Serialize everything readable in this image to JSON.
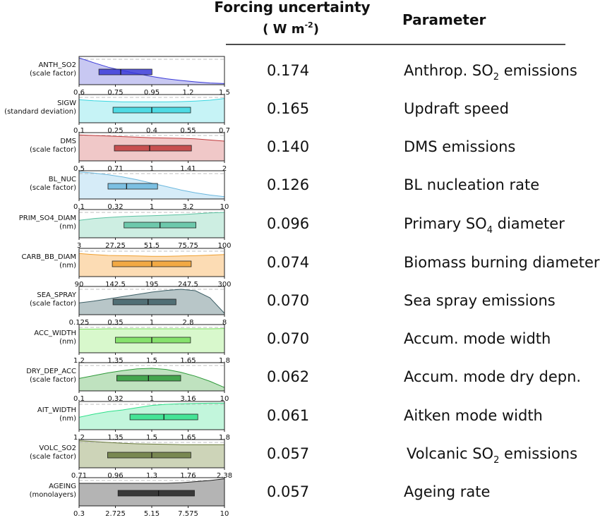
{
  "header": {
    "forcing_title": "Forcing uncertainty",
    "forcing_unit_pre": "( W m",
    "forcing_unit_sup": "-2",
    "forcing_unit_post": ")",
    "parameter_title": "Parameter"
  },
  "chart_data": {
    "type": "box-density",
    "title": "",
    "rows": [
      {
        "label": "ANTH_SO2",
        "sublabel": "(scale factor)",
        "forcing": "0.174",
        "parameter": "Anthrop. SO",
        "parameter_sub": "2",
        "parameter_post": " emissions",
        "color": "#3a3ad8",
        "fill": "#c8c8f2",
        "scale": "log",
        "ticks": [
          "0.6",
          "0.75",
          "0.95",
          "1.2",
          "1.5"
        ],
        "xmin": 0.6,
        "xmax": 1.5,
        "box": {
          "q1": 0.68,
          "median": 0.78,
          "q3": 0.95
        },
        "density": [
          0.95,
          0.78,
          0.62,
          0.5,
          0.39,
          0.29,
          0.21,
          0.15,
          0.1,
          0.06,
          0.04
        ]
      },
      {
        "label": "SIGW",
        "sublabel": "(standard deviation)",
        "forcing": "0.165",
        "parameter": "Updraft speed",
        "parameter_sub": "",
        "parameter_post": "",
        "color": "#38d6e0",
        "fill": "#c6f3f6",
        "scale": "linear",
        "ticks": [
          "0.1",
          "0.25",
          "0.4",
          "0.55",
          "0.7"
        ],
        "xmin": 0.1,
        "xmax": 0.7,
        "box": {
          "q1": 0.24,
          "median": 0.4,
          "q3": 0.56
        },
        "density": [
          0.82,
          0.78,
          0.76,
          0.74,
          0.74,
          0.74,
          0.74,
          0.75,
          0.77,
          0.8,
          0.86
        ]
      },
      {
        "label": "DMS",
        "sublabel": "(scale factor)",
        "forcing": "0.140",
        "parameter": "DMS emissions",
        "parameter_sub": "",
        "parameter_post": "",
        "color": "#c0393b",
        "fill": "#f0c8c8",
        "scale": "log",
        "ticks": [
          "0.5",
          "0.71",
          "1",
          "1.41",
          "2"
        ],
        "xmin": 0.5,
        "xmax": 2,
        "box": {
          "q1": 0.7,
          "median": 0.98,
          "q3": 1.46
        },
        "density": [
          0.92,
          0.9,
          0.88,
          0.86,
          0.84,
          0.82,
          0.81,
          0.8,
          0.78,
          0.74,
          0.7
        ]
      },
      {
        "label": "BL_NUC",
        "sublabel": "(scale factor)",
        "forcing": "0.126",
        "parameter": "BL nucleation rate",
        "parameter_sub": "",
        "parameter_post": "",
        "color": "#6cb8de",
        "fill": "#d6ecf8",
        "scale": "log",
        "ticks": [
          "0.1",
          "0.32",
          "1",
          "3.2",
          "10"
        ],
        "xmin": 0.1,
        "xmax": 10,
        "box": {
          "q1": 0.25,
          "median": 0.45,
          "q3": 1.2
        },
        "density": [
          0.96,
          0.92,
          0.86,
          0.78,
          0.68,
          0.56,
          0.44,
          0.32,
          0.22,
          0.14,
          0.08
        ]
      },
      {
        "label": "PRIM_SO4_DIAM",
        "sublabel": "(nm)",
        "forcing": "0.096",
        "parameter": "Primary SO",
        "parameter_sub": "4",
        "parameter_post": " diameter",
        "color": "#5cc2a2",
        "fill": "#cdeee2",
        "scale": "linear",
        "ticks": [
          "3",
          "27.25",
          "51.5",
          "75.75",
          "100"
        ],
        "xmin": 3,
        "xmax": 100,
        "box": {
          "q1": 33,
          "median": 57,
          "q3": 81
        },
        "density": [
          0.62,
          0.68,
          0.72,
          0.75,
          0.77,
          0.78,
          0.8,
          0.82,
          0.85,
          0.88,
          0.9
        ]
      },
      {
        "label": "CARB_BB_DIAM",
        "sublabel": "(nm)",
        "forcing": "0.074",
        "parameter": "Biomass burning diameter",
        "parameter_sub": "",
        "parameter_post": "",
        "color": "#f0a030",
        "fill": "#fcdcb4",
        "scale": "linear",
        "ticks": [
          "90",
          "142.5",
          "195",
          "247.5",
          "300"
        ],
        "xmin": 90,
        "xmax": 300,
        "box": {
          "q1": 138,
          "median": 195,
          "q3": 252
        },
        "density": [
          0.82,
          0.78,
          0.75,
          0.74,
          0.73,
          0.72,
          0.72,
          0.73,
          0.74,
          0.76,
          0.78
        ]
      },
      {
        "label": "SEA_SPRAY",
        "sublabel": "(scale factor)",
        "forcing": "0.070",
        "parameter": "Sea spray emissions",
        "parameter_sub": "",
        "parameter_post": "",
        "color": "#3e5f66",
        "fill": "#b8c6c8",
        "scale": "log",
        "ticks": [
          "0.125",
          "0.35",
          "1",
          "2.8",
          "8"
        ],
        "xmin": 0.125,
        "xmax": 8,
        "box": {
          "q1": 0.33,
          "median": 0.9,
          "q3": 2.0
        },
        "density": [
          0.42,
          0.48,
          0.56,
          0.64,
          0.72,
          0.8,
          0.86,
          0.9,
          0.85,
          0.6,
          0.05
        ]
      },
      {
        "label": "ACC_WIDTH",
        "sublabel": "(nm)",
        "forcing": "0.070",
        "parameter": "Accum. mode width",
        "parameter_sub": "",
        "parameter_post": "",
        "color": "#78de5a",
        "fill": "#d8f8cc",
        "scale": "linear",
        "ticks": [
          "1.2",
          "1.35",
          "1.5",
          "1.65",
          "1.8"
        ],
        "xmin": 1.2,
        "xmax": 1.8,
        "box": {
          "q1": 1.35,
          "median": 1.5,
          "q3": 1.66
        },
        "density": [
          0.84,
          0.84,
          0.85,
          0.85,
          0.85,
          0.85,
          0.85,
          0.85,
          0.85,
          0.85,
          0.86
        ]
      },
      {
        "label": "DRY_DEP_ACC",
        "sublabel": "(scale factor)",
        "forcing": "0.062",
        "parameter": "Accum. mode dry depn.",
        "parameter_sub": "",
        "parameter_post": "",
        "color": "#2e9a3a",
        "fill": "#bfe2bf",
        "scale": "log",
        "ticks": [
          "0.1",
          "0.32",
          "1",
          "3.16",
          "10"
        ],
        "xmin": 0.1,
        "xmax": 10,
        "box": {
          "q1": 0.33,
          "median": 0.9,
          "q3": 2.5
        },
        "density": [
          0.44,
          0.54,
          0.64,
          0.72,
          0.78,
          0.8,
          0.76,
          0.66,
          0.52,
          0.34,
          0.12
        ]
      },
      {
        "label": "AIT_WIDTH",
        "sublabel": "(nm)",
        "forcing": "0.061",
        "parameter": "Aitken mode width",
        "parameter_sub": "",
        "parameter_post": "",
        "color": "#2ee08a",
        "fill": "#c2f6dc",
        "scale": "linear",
        "ticks": [
          "1.2",
          "1.35",
          "1.5",
          "1.65",
          "1.8"
        ],
        "xmin": 1.2,
        "xmax": 1.8,
        "box": {
          "q1": 1.41,
          "median": 1.55,
          "q3": 1.69
        },
        "density": [
          0.44,
          0.55,
          0.64,
          0.7,
          0.78,
          0.86,
          0.9,
          0.92,
          0.93,
          0.94,
          0.94
        ]
      },
      {
        "label": "VOLC_SO2",
        "sublabel": "(scale factor)",
        "forcing": "0.057",
        "parameter": "Volcanic SO",
        "parameter_sub": "2",
        "parameter_post": " emissions",
        "color": "#6a7a3e",
        "fill": "#cdd4b8",
        "scale": "log",
        "ticks": [
          "0.71",
          "0.96",
          "1.3",
          "1.76",
          "2.38"
        ],
        "xmin": 0.71,
        "xmax": 2.38,
        "box": {
          "q1": 0.9,
          "median": 1.3,
          "q3": 1.8
        },
        "density": [
          0.96,
          0.93,
          0.9,
          0.87,
          0.85,
          0.84,
          0.83,
          0.82,
          0.82,
          0.82,
          0.82
        ]
      },
      {
        "label": "AGEING",
        "sublabel": "(monolayers)",
        "forcing": "0.057",
        "parameter": "Ageing rate",
        "parameter_sub": "",
        "parameter_post": "",
        "color": "#222222",
        "fill": "#b4b4b4",
        "scale": "linear",
        "ticks": [
          "0.3",
          "2.725",
          "5.15",
          "7.575",
          "10"
        ],
        "xmin": 0.3,
        "xmax": 10,
        "box": {
          "q1": 2.9,
          "median": 5.6,
          "q3": 8.0
        },
        "density": [
          0.8,
          0.8,
          0.8,
          0.8,
          0.8,
          0.8,
          0.8,
          0.82,
          0.86,
          0.9,
          0.96
        ]
      }
    ]
  }
}
